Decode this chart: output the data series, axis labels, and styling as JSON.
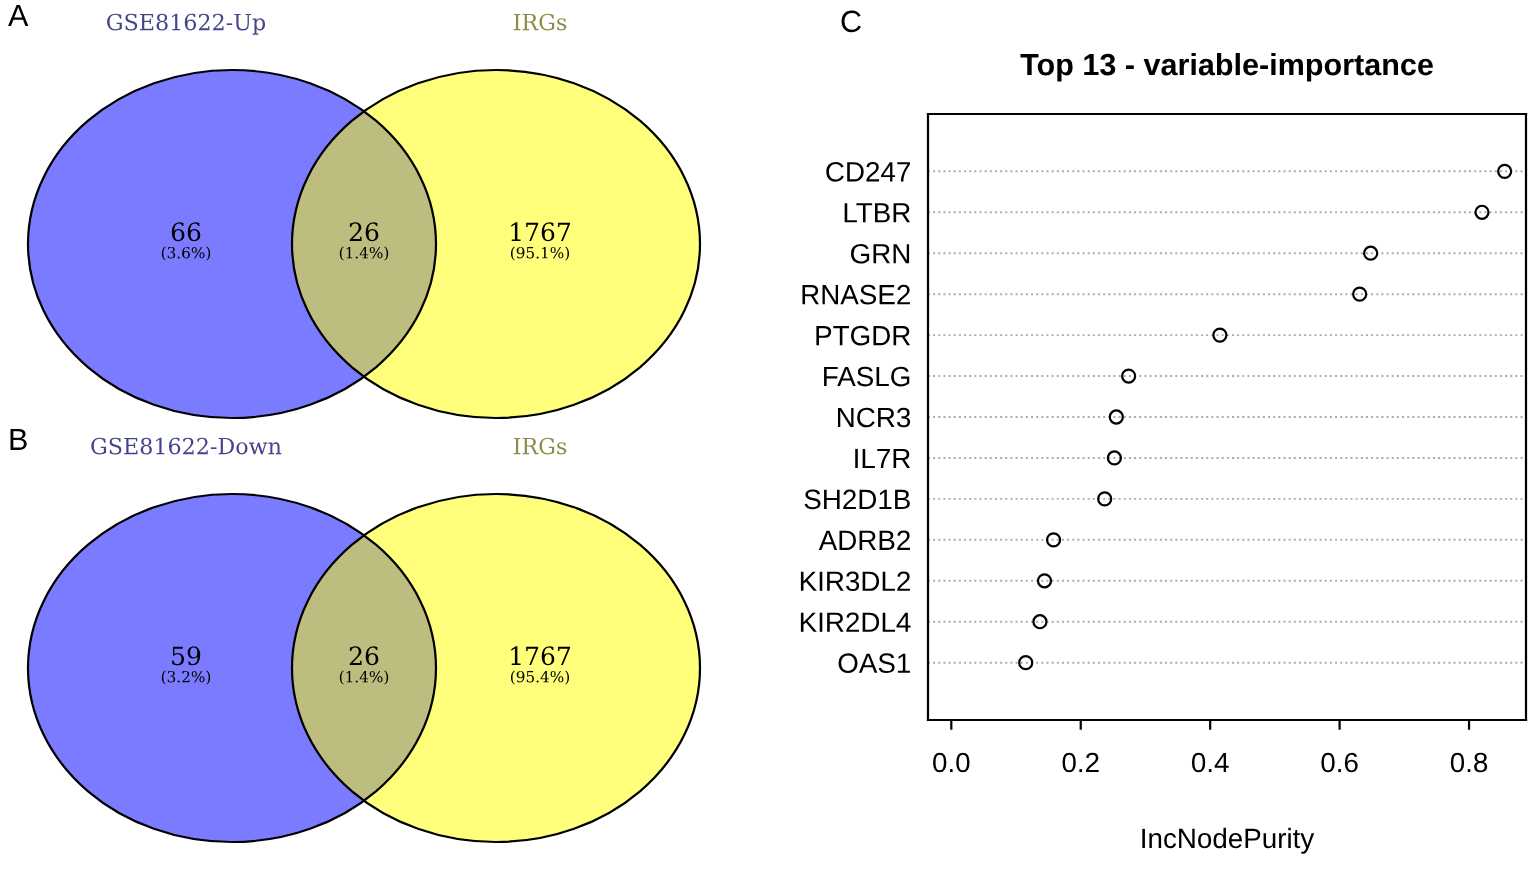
{
  "chart_data": [
    {
      "type": "other",
      "annotations": [
        "A",
        "GSE81622-Up",
        "IRGs",
        "(3.6%)",
        "(1.4%)",
        "(95.1%)"
      ],
      "categories": [
        null,
        null,
        null
      ],
      "colors": [
        "#7b7bff",
        "#bdbd80",
        "#ffff7b"
      ],
      "values": [
        66,
        26,
        1767
      ],
      "data_labels": true
    },
    {
      "type": "other",
      "annotations": [
        "B",
        "GSE81622-Down",
        "IRGs",
        "(3.2%)",
        "(1.4%)",
        "(95.4%)"
      ],
      "categories": [
        null,
        null,
        null
      ],
      "colors": [
        "#7b7bff",
        "#bdbd80",
        "#ffff7b"
      ],
      "values": [
        59,
        26,
        1767
      ],
      "data_labels": true
    },
    {
      "type": "scatter",
      "orientation": "horizontal",
      "title": "Top 13 - variable-importance",
      "xlabel": "IncNodePurity",
      "annotations": [
        "C"
      ],
      "categories": [
        "CD247",
        "LTBR",
        "GRN",
        "RNASE2",
        "PTGDR",
        "FASLG",
        "NCR3",
        "IL7R",
        "SH2D1B",
        "ADRB2",
        "KIR3DL2",
        "KIR2DL4",
        "OAS1"
      ],
      "values": [
        0.855,
        0.82,
        0.648,
        0.631,
        0.415,
        0.274,
        0.255,
        0.252,
        0.237,
        0.158,
        0.144,
        0.137,
        0.115
      ],
      "color": "#000000",
      "marker": "circle",
      "grid": "y",
      "line_style": "dotted",
      "xlim": [
        -0.036,
        0.888
      ],
      "xticks": [
        {
          "value": 0,
          "label": "0.0"
        },
        {
          "value": 0.2,
          "label": "0.2"
        },
        {
          "value": 0.4,
          "label": "0.4"
        },
        {
          "value": 0.6,
          "label": "0.6"
        },
        {
          "value": 0.8,
          "label": "0.8"
        }
      ]
    }
  ]
}
